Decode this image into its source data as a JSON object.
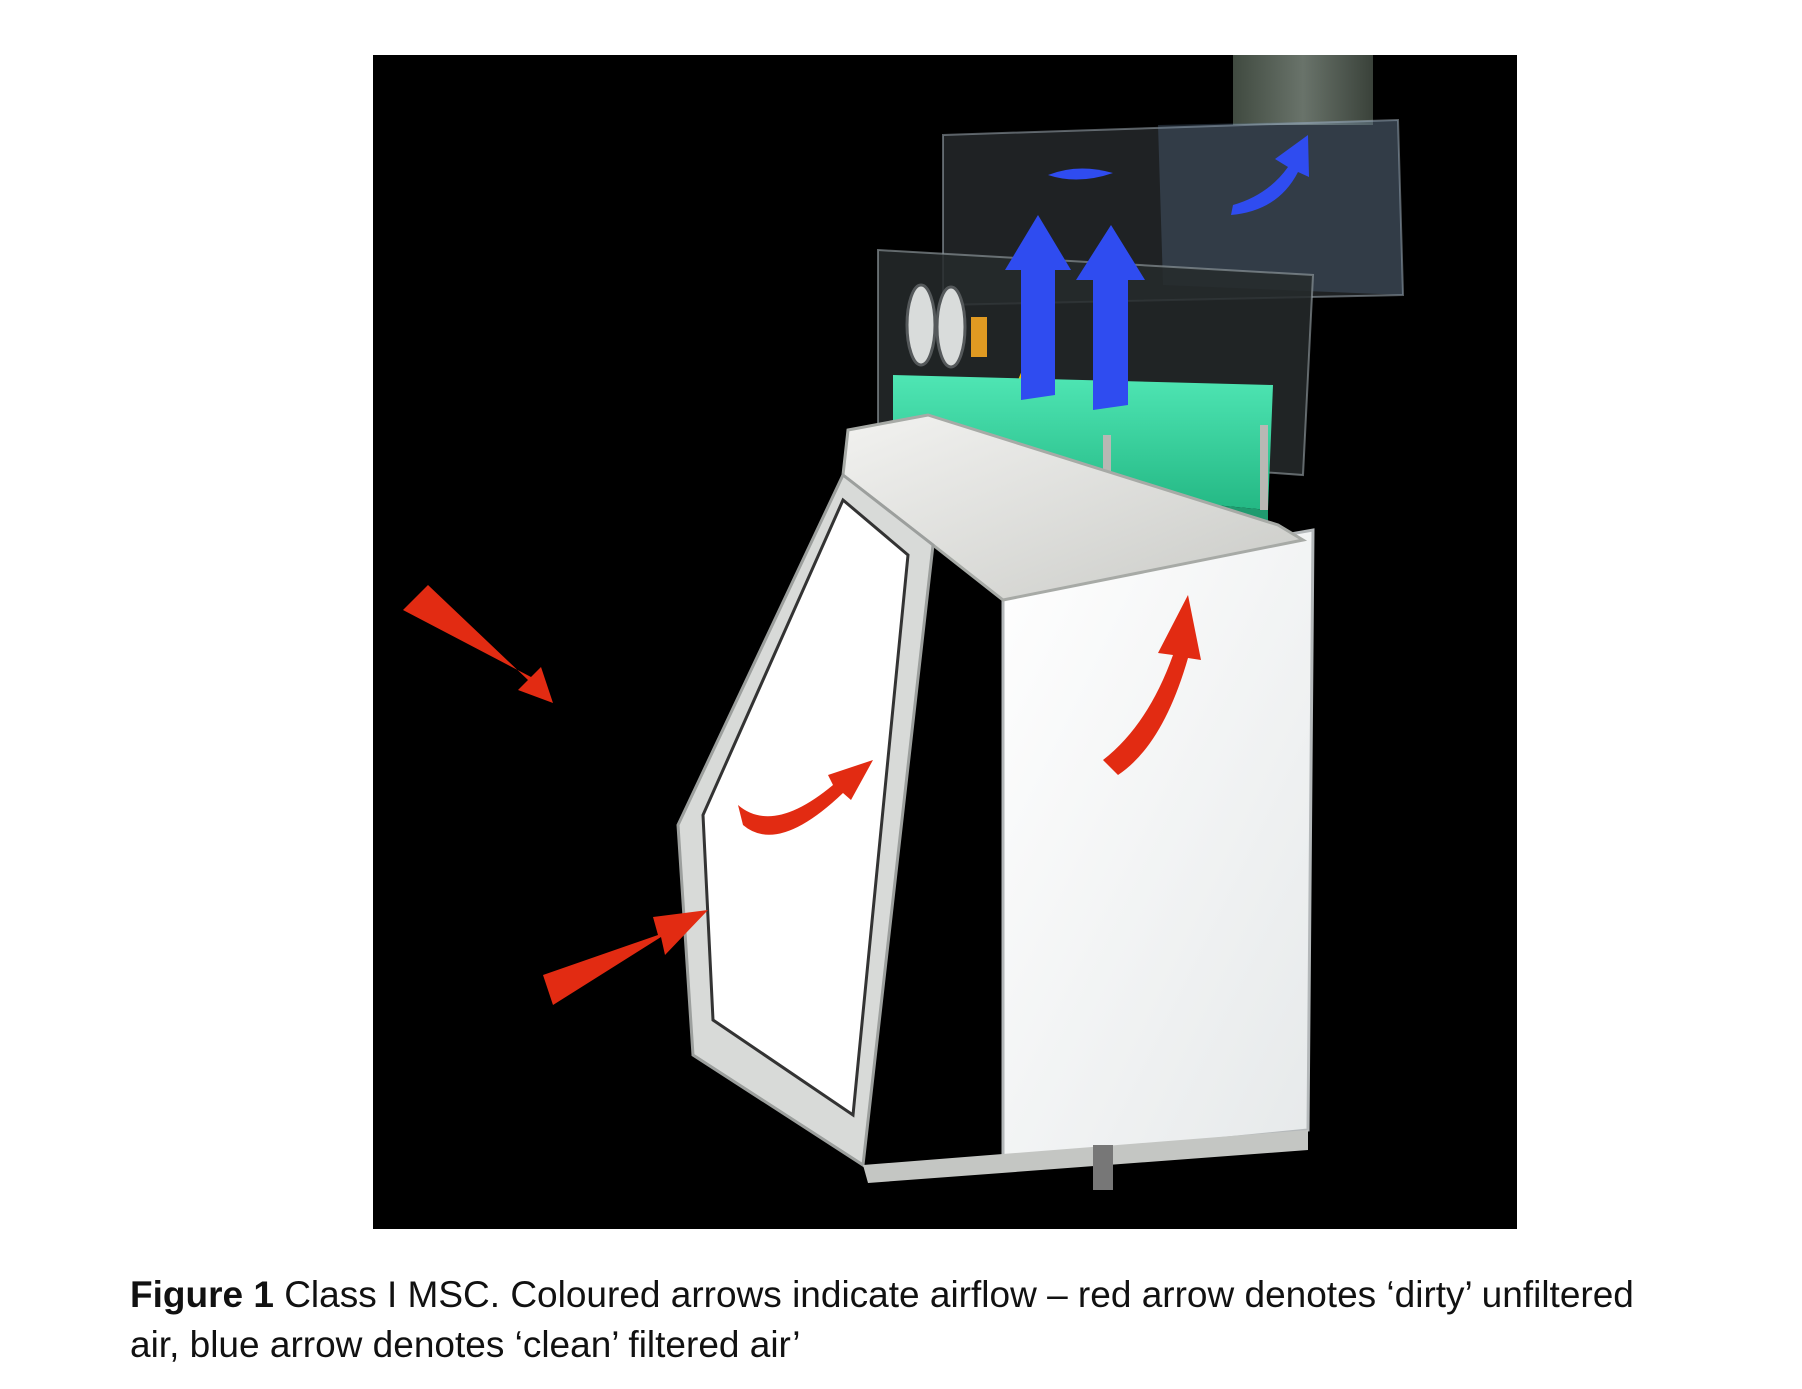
{
  "figure": {
    "illustration": "class-1-microbiological-safety-cabinet-illustration",
    "colors": {
      "background": "#000000",
      "dirty_air_arrow": "#e22b12",
      "clean_air_arrow": "#2f4cf0",
      "hepa_filter": "#39d6a0",
      "cabinet_body": "#f3f3f3"
    }
  },
  "caption": {
    "label": "Figure 1",
    "text": " Class I MSC. Coloured arrows indicate airflow – red arrow denotes ‘dirty’ unfiltered air, blue arrow denotes ‘clean’ filtered air’"
  }
}
